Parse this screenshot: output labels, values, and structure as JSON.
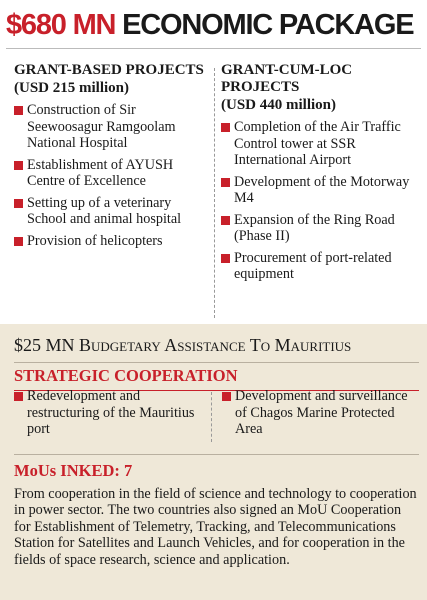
{
  "title": {
    "highlight": "$680 MN",
    "text": "ECONOMIC PACKAGE"
  },
  "columns": [
    {
      "heading": "GRANT-BASED PROJECTS",
      "amount": "(USD 215 million)",
      "items": [
        "Construction of Sir Seewoosagur Ramgoolam National Hospital",
        "Establishment of AYUSH Centre of Excellence",
        "Setting up of a veterinary School and animal hospital",
        "Provision of helicopters"
      ]
    },
    {
      "heading": "GRANT-CUM-LOC PROJECTS",
      "amount": "(USD 440 million)",
      "items": [
        "Completion of the Air Traffic Control tower at SSR International Airport",
        "Development of the Motorway M4",
        "Expansion of the Ring Road (Phase II)",
        "Procurement of port-related equipment"
      ]
    }
  ],
  "budget": "$25 MN Budgetary Assistance To Mauritius",
  "strategic": {
    "heading": "STRATEGIC COOPERATION",
    "items": [
      "Redevelopment and restructuring of the Mauritius port",
      "Development and surveillance of Chagos Marine Protected Area"
    ]
  },
  "mous": {
    "heading": "MoUs INKED: 7",
    "text": "From cooperation in the field of science and technology to cooperation in power sector. The two countries also signed an MoU Cooperation for Establishment of Telemetry, Tracking, and Telecommunications Station for Satellites and Launch Vehicles, and for cooperation in the fields of space research, science and application."
  }
}
